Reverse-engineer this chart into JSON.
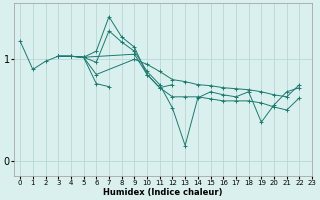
{
  "xlabel": "Humidex (Indice chaleur)",
  "bg_color": "#daf0ee",
  "line_color": "#1a7a6e",
  "grid_color": "#b8d8d5",
  "xlim": [
    -0.5,
    23
  ],
  "ylim": [
    -0.15,
    1.55
  ],
  "yticks": [
    0,
    1
  ],
  "xticks": [
    0,
    1,
    2,
    3,
    4,
    5,
    6,
    7,
    8,
    9,
    10,
    11,
    12,
    13,
    14,
    15,
    16,
    17,
    18,
    19,
    20,
    21,
    22,
    23
  ],
  "lines": [
    [
      [
        0,
        1.18
      ],
      [
        1,
        0.9
      ],
      [
        2,
        0.98
      ],
      [
        3,
        1.03
      ],
      [
        4,
        1.03
      ],
      [
        5,
        1.02
      ],
      [
        6,
        0.97
      ],
      [
        7,
        1.28
      ],
      [
        8,
        1.17
      ],
      [
        9,
        1.08
      ],
      [
        10,
        0.88
      ],
      [
        11,
        0.75
      ],
      [
        12,
        0.52
      ],
      [
        13,
        0.15
      ],
      [
        14,
        0.62
      ],
      [
        15,
        0.68
      ],
      [
        16,
        0.65
      ],
      [
        17,
        0.63
      ],
      [
        18,
        0.68
      ],
      [
        19,
        0.38
      ],
      [
        20,
        0.55
      ],
      [
        21,
        0.68
      ],
      [
        22,
        0.72
      ]
    ],
    [
      [
        3,
        1.03
      ],
      [
        4,
        1.03
      ],
      [
        5,
        1.02
      ],
      [
        6,
        0.85
      ],
      [
        9,
        1.0
      ],
      [
        10,
        0.95
      ],
      [
        11,
        0.88
      ],
      [
        12,
        0.8
      ],
      [
        13,
        0.78
      ],
      [
        14,
        0.75
      ],
      [
        15,
        0.74
      ],
      [
        16,
        0.72
      ],
      [
        17,
        0.71
      ],
      [
        18,
        0.7
      ],
      [
        19,
        0.68
      ],
      [
        20,
        0.65
      ],
      [
        21,
        0.63
      ],
      [
        22,
        0.75
      ]
    ],
    [
      [
        3,
        1.03
      ],
      [
        4,
        1.03
      ],
      [
        5,
        1.02
      ],
      [
        6,
        1.08
      ],
      [
        7,
        1.42
      ],
      [
        8,
        1.22
      ],
      [
        9,
        1.12
      ],
      [
        10,
        0.85
      ],
      [
        11,
        0.72
      ],
      [
        12,
        0.75
      ]
    ],
    [
      [
        3,
        1.03
      ],
      [
        4,
        1.03
      ],
      [
        5,
        1.02
      ],
      [
        6,
        0.76
      ],
      [
        7,
        0.73
      ]
    ],
    [
      [
        3,
        1.03
      ],
      [
        4,
        1.03
      ],
      [
        5,
        1.02
      ],
      [
        9,
        1.05
      ],
      [
        10,
        0.85
      ],
      [
        11,
        0.72
      ],
      [
        12,
        0.63
      ],
      [
        13,
        0.63
      ],
      [
        14,
        0.63
      ],
      [
        15,
        0.61
      ],
      [
        16,
        0.59
      ],
      [
        17,
        0.59
      ],
      [
        18,
        0.59
      ],
      [
        19,
        0.57
      ],
      [
        20,
        0.53
      ],
      [
        21,
        0.5
      ],
      [
        22,
        0.62
      ]
    ]
  ]
}
